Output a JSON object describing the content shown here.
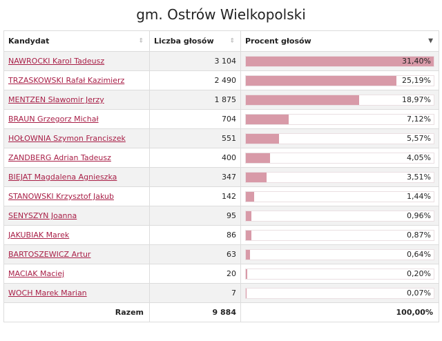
{
  "title": "gm. Ostrów Wielkopolski",
  "columns": {
    "candidate": "Kandydat",
    "votes": "Liczba głosów",
    "percent": "Procent głosów"
  },
  "rows": [
    {
      "name": "NAWROCKI Karol Tadeusz",
      "votes": "3 104",
      "percent_label": "31,40%",
      "percent": 31.4
    },
    {
      "name": "TRZASKOWSKI Rafał Kazimierz",
      "votes": "2 490",
      "percent_label": "25,19%",
      "percent": 25.19
    },
    {
      "name": "MENTZEN Sławomir Jerzy",
      "votes": "1 875",
      "percent_label": "18,97%",
      "percent": 18.97
    },
    {
      "name": "BRAUN Grzegorz Michał",
      "votes": "704",
      "percent_label": "7,12%",
      "percent": 7.12
    },
    {
      "name": "HOŁOWNIA Szymon Franciszek",
      "votes": "551",
      "percent_label": "5,57%",
      "percent": 5.57
    },
    {
      "name": "ZANDBERG Adrian Tadeusz",
      "votes": "400",
      "percent_label": "4,05%",
      "percent": 4.05
    },
    {
      "name": "BIEJAT Magdalena Agnieszka",
      "votes": "347",
      "percent_label": "3,51%",
      "percent": 3.51
    },
    {
      "name": "STANOWSKI Krzysztof Jakub",
      "votes": "142",
      "percent_label": "1,44%",
      "percent": 1.44
    },
    {
      "name": "SENYSZYN Joanna",
      "votes": "95",
      "percent_label": "0,96%",
      "percent": 0.96
    },
    {
      "name": "JAKUBIAK Marek",
      "votes": "86",
      "percent_label": "0,87%",
      "percent": 0.87
    },
    {
      "name": "BARTOSZEWICZ Artur",
      "votes": "63",
      "percent_label": "0,64%",
      "percent": 0.64
    },
    {
      "name": "MACIAK Maciej",
      "votes": "20",
      "percent_label": "0,20%",
      "percent": 0.2
    },
    {
      "name": "WOCH Marek Marian",
      "votes": "7",
      "percent_label": "0,07%",
      "percent": 0.07
    }
  ],
  "total": {
    "label": "Razem",
    "votes": "9 884",
    "percent_label": "100,00%"
  },
  "colors": {
    "bar": "#d89aa8",
    "link": "#a81e46"
  }
}
